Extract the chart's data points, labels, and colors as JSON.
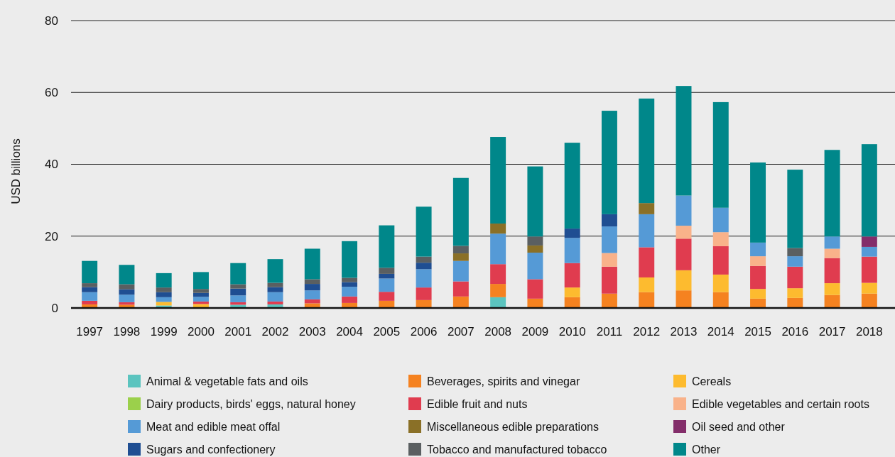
{
  "chart_data": {
    "type": "bar",
    "stacked": true,
    "ylabel": "USD billions",
    "ylim": [
      0,
      80
    ],
    "yticks": [
      0,
      20,
      40,
      60,
      80
    ],
    "grid": "y",
    "legend": "bottom",
    "categories": [
      "1997",
      "1998",
      "1999",
      "2000",
      "2001",
      "2002",
      "2003",
      "2004",
      "2005",
      "2006",
      "2007",
      "2008",
      "2009",
      "2010",
      "2011",
      "2012",
      "2013",
      "2014",
      "2015",
      "2016",
      "2017",
      "2018"
    ],
    "series": [
      {
        "name": "Animal & vegetable fats and oils",
        "color": "#5bc4bf",
        "values": [
          null,
          null,
          0.7,
          null,
          0.9,
          1.0,
          null,
          null,
          null,
          null,
          null,
          3.0,
          null,
          null,
          null,
          null,
          null,
          null,
          null,
          null,
          null,
          null
        ]
      },
      {
        "name": "Beverages, spirits and vinegar",
        "color": "#f58220",
        "values": [
          1.0,
          0.9,
          null,
          null,
          null,
          null,
          1.3,
          1.4,
          2.0,
          2.2,
          3.2,
          3.7,
          2.6,
          3.0,
          4.0,
          4.4,
          4.9,
          4.4,
          2.6,
          2.8,
          3.6,
          4.0
        ]
      },
      {
        "name": "Cereals",
        "color": "#fdbb2f",
        "values": [
          null,
          null,
          1.0,
          1.1,
          null,
          null,
          null,
          null,
          null,
          null,
          null,
          null,
          null,
          2.7,
          null,
          4.1,
          5.6,
          4.9,
          2.7,
          2.7,
          3.3,
          3.0
        ]
      },
      {
        "name": "Dairy products, birds' eggs, natural honey",
        "color": "#9bd04b",
        "values": [
          null,
          null,
          null,
          null,
          null,
          null,
          null,
          null,
          null,
          null,
          null,
          null,
          null,
          null,
          null,
          null,
          null,
          null,
          null,
          null,
          null,
          null
        ]
      },
      {
        "name": "Edible fruit and nuts",
        "color": "#e03c4f",
        "values": [
          1.0,
          0.7,
          null,
          0.7,
          0.7,
          0.8,
          1.1,
          1.8,
          2.5,
          3.5,
          4.2,
          5.5,
          5.4,
          6.8,
          7.5,
          8.4,
          8.8,
          7.9,
          6.4,
          6.0,
          7.0,
          7.3
        ]
      },
      {
        "name": "Edible vegetables and certain roots",
        "color": "#f9b28a",
        "values": [
          null,
          null,
          null,
          null,
          null,
          null,
          null,
          null,
          null,
          null,
          null,
          null,
          null,
          null,
          3.8,
          null,
          3.6,
          3.9,
          2.7,
          null,
          2.6,
          null
        ]
      },
      {
        "name": "Meat and edible meat offal",
        "color": "#559ad6",
        "values": [
          2.4,
          2.1,
          1.3,
          1.3,
          1.9,
          2.6,
          2.5,
          2.7,
          3.7,
          5.1,
          5.7,
          8.5,
          7.4,
          7.0,
          7.4,
          9.2,
          8.4,
          6.8,
          3.8,
          2.9,
          3.4,
          2.7
        ]
      },
      {
        "name": "Miscellaneous edible preparations",
        "color": "#8a7027",
        "values": [
          null,
          null,
          null,
          null,
          null,
          null,
          null,
          null,
          null,
          null,
          2.1,
          2.8,
          2.0,
          null,
          null,
          3.1,
          null,
          null,
          null,
          null,
          null,
          null
        ]
      },
      {
        "name": "Oil seed and other",
        "color": "#832d6a",
        "values": [
          null,
          null,
          null,
          null,
          null,
          null,
          null,
          null,
          null,
          null,
          null,
          null,
          null,
          null,
          null,
          null,
          null,
          null,
          null,
          null,
          null,
          2.9
        ]
      },
      {
        "name": "Sugars and confectionery",
        "color": "#1f4e92",
        "values": [
          1.4,
          1.5,
          1.4,
          1.1,
          1.9,
          1.4,
          1.8,
          1.3,
          1.3,
          1.8,
          null,
          null,
          null,
          2.6,
          3.4,
          null,
          null,
          null,
          null,
          null,
          null,
          null
        ]
      },
      {
        "name": "Tobacco and manufactured tobacco",
        "color": "#5a5f61",
        "values": [
          1.1,
          1.4,
          1.3,
          1.1,
          1.2,
          1.2,
          1.3,
          1.2,
          1.7,
          1.7,
          2.1,
          null,
          2.5,
          null,
          null,
          null,
          null,
          null,
          null,
          2.3,
          null,
          null
        ]
      },
      {
        "name": "Other",
        "color": "#00878a",
        "values": [
          6.2,
          5.4,
          4.0,
          4.7,
          5.9,
          6.6,
          8.5,
          10.2,
          11.8,
          13.9,
          18.9,
          24.1,
          19.5,
          23.9,
          28.8,
          29.1,
          30.5,
          29.4,
          22.3,
          21.8,
          24.1,
          25.7
        ]
      }
    ]
  }
}
